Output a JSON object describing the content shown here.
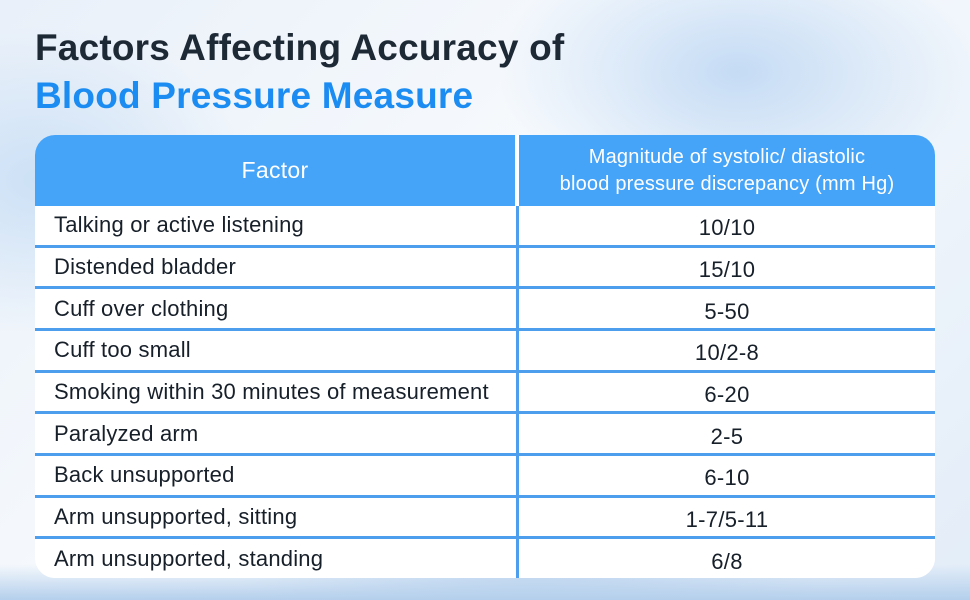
{
  "title": {
    "line1": "Factors Affecting Accuracy of",
    "line2": "Blood Pressure Measure"
  },
  "table": {
    "header": {
      "factor": "Factor",
      "magnitude_line1": "Magnitude of systolic/ diastolic",
      "magnitude_line2": "blood pressure discrepancy (mm Hg)"
    },
    "rows": [
      {
        "factor": "Talking or active listening",
        "value": "10/10"
      },
      {
        "factor": "Distended bladder",
        "value": "15/10"
      },
      {
        "factor": "Cuff over clothing",
        "value": "5-50"
      },
      {
        "factor": "Cuff too small",
        "value": "10/2-8"
      },
      {
        "factor": "Smoking within 30 minutes of measurement",
        "value": "6-20"
      },
      {
        "factor": "Paralyzed arm",
        "value": "2-5"
      },
      {
        "factor": "Back unsupported",
        "value": "6-10"
      },
      {
        "factor": "Arm unsupported, sitting",
        "value": "1-7/5-11"
      },
      {
        "factor": "Arm unsupported, standing",
        "value": "6/8"
      }
    ]
  },
  "colors": {
    "title_dark": "#1e2936",
    "title_accent": "#1b8cf2",
    "header_background": "#45a3f8",
    "grid_line": "#4d9fee",
    "body_text": "#171f29"
  },
  "chart_data": {
    "type": "table",
    "title": "Factors Affecting Accuracy of Blood Pressure Measure",
    "columns": [
      "Factor",
      "Magnitude of systolic/ diastolic blood pressure discrepancy (mm Hg)"
    ],
    "rows": [
      [
        "Talking or active listening",
        "10/10"
      ],
      [
        "Distended bladder",
        "15/10"
      ],
      [
        "Cuff over clothing",
        "5-50"
      ],
      [
        "Cuff too small",
        "10/2-8"
      ],
      [
        "Smoking within 30 minutes of measurement",
        "6-20"
      ],
      [
        "Paralyzed arm",
        "2-5"
      ],
      [
        "Back unsupported",
        "6-10"
      ],
      [
        "Arm unsupported, sitting",
        "1-7/5-11"
      ],
      [
        "Arm unsupported, standing",
        "6/8"
      ]
    ]
  }
}
